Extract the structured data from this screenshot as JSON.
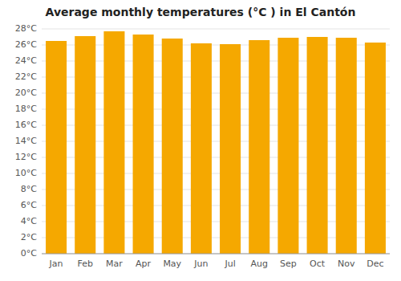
{
  "chart_data": {
    "type": "bar",
    "title": "Average monthly temperatures (°C ) in El Cantón",
    "categories": [
      "Jan",
      "Feb",
      "Mar",
      "Apr",
      "May",
      "Jun",
      "Jul",
      "Aug",
      "Sep",
      "Oct",
      "Nov",
      "Dec"
    ],
    "values": [
      26.5,
      27.1,
      27.7,
      27.3,
      26.8,
      26.2,
      26.1,
      26.6,
      26.9,
      27.0,
      26.9,
      26.3
    ],
    "color": "#F5A800",
    "ylim": [
      0,
      28
    ],
    "yticks": [
      {
        "value": 0,
        "label": "0°C"
      },
      {
        "value": 2,
        "label": "2°C"
      },
      {
        "value": 4,
        "label": "4°C"
      },
      {
        "value": 6,
        "label": "6°C"
      },
      {
        "value": 8,
        "label": "8°C"
      },
      {
        "value": 10,
        "label": "10°C"
      },
      {
        "value": 12,
        "label": "12°C"
      },
      {
        "value": 14,
        "label": "14°C"
      },
      {
        "value": 16,
        "label": "16°C"
      },
      {
        "value": 18,
        "label": "18°C"
      },
      {
        "value": 20,
        "label": "20°C"
      },
      {
        "value": 22,
        "label": "22°C"
      },
      {
        "value": 24,
        "label": "24°C"
      },
      {
        "value": 26,
        "label": "26°C"
      },
      {
        "value": 28,
        "label": "28°C"
      }
    ],
    "grid": true
  }
}
